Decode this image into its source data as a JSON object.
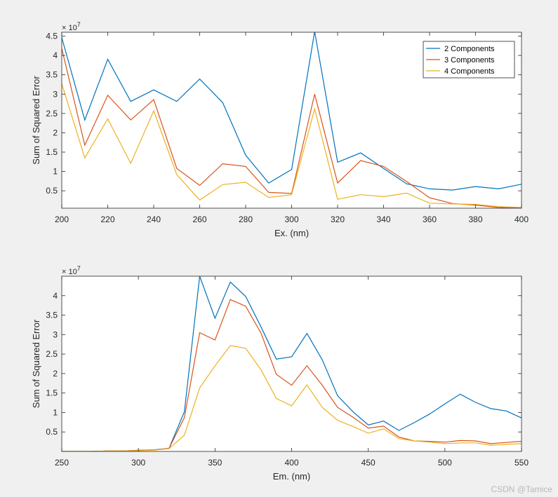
{
  "chart_data": [
    {
      "type": "line",
      "xlabel": "Ex. (nm)",
      "ylabel": "Sum of Squared Error",
      "y_exponent": "× 10^7",
      "xlim": [
        200,
        400
      ],
      "ylim": [
        0.05,
        4.6
      ],
      "xticks": [
        200,
        220,
        240,
        260,
        280,
        300,
        320,
        340,
        360,
        380,
        400
      ],
      "yticks": [
        0.5,
        1,
        1.5,
        2,
        2.5,
        3,
        3.5,
        4,
        4.5
      ],
      "x": [
        200,
        210,
        220,
        230,
        240,
        250,
        260,
        270,
        280,
        290,
        300,
        310,
        320,
        330,
        340,
        350,
        360,
        370,
        380,
        390,
        400
      ],
      "legend": "top-right",
      "series": [
        {
          "name": "2 Components",
          "color": "#0072BD",
          "values": [
            4.46,
            2.33,
            3.9,
            2.81,
            3.11,
            2.81,
            3.39,
            2.78,
            1.42,
            0.7,
            1.05,
            4.62,
            1.24,
            1.48,
            1.08,
            0.68,
            0.55,
            0.52,
            0.61,
            0.55,
            0.67
          ]
        },
        {
          "name": "3 Components",
          "color": "#D95319",
          "values": [
            4.18,
            1.68,
            2.97,
            2.33,
            2.86,
            1.08,
            0.64,
            1.2,
            1.13,
            0.46,
            0.43,
            3.0,
            0.7,
            1.28,
            1.13,
            0.74,
            0.32,
            0.17,
            0.13,
            0.07,
            0.05
          ]
        },
        {
          "name": "4 Components",
          "color": "#EDB120",
          "values": [
            3.27,
            1.35,
            2.36,
            1.21,
            2.57,
            0.92,
            0.26,
            0.66,
            0.72,
            0.33,
            0.4,
            2.62,
            0.28,
            0.4,
            0.35,
            0.44,
            0.18,
            0.16,
            0.15,
            0.09,
            0.07
          ]
        }
      ]
    },
    {
      "type": "line",
      "xlabel": "Em. (nm)",
      "ylabel": "Sum of Squared Error",
      "y_exponent": "× 10^7",
      "xlim": [
        250,
        550
      ],
      "ylim": [
        0,
        4.5
      ],
      "xticks": [
        250,
        300,
        350,
        400,
        450,
        500,
        550
      ],
      "yticks": [
        0.5,
        1,
        1.5,
        2,
        2.5,
        3,
        3.5,
        4
      ],
      "x": [
        250,
        260,
        270,
        280,
        290,
        300,
        310,
        320,
        330,
        340,
        350,
        360,
        370,
        380,
        390,
        400,
        410,
        420,
        430,
        440,
        450,
        460,
        470,
        480,
        490,
        500,
        510,
        520,
        530,
        540,
        550
      ],
      "series": [
        {
          "name": "2 Components",
          "color": "#0072BD",
          "values": [
            0.0,
            0.0,
            0.0,
            0.01,
            0.01,
            0.03,
            0.04,
            0.08,
            1.02,
            4.5,
            3.42,
            4.35,
            3.98,
            3.2,
            2.37,
            2.43,
            3.03,
            2.35,
            1.43,
            1.02,
            0.68,
            0.78,
            0.54,
            0.74,
            0.96,
            1.22,
            1.47,
            1.26,
            1.1,
            1.04,
            0.86
          ]
        },
        {
          "name": "3 Components",
          "color": "#D95319",
          "values": [
            0.0,
            0.0,
            0.0,
            0.01,
            0.01,
            0.03,
            0.04,
            0.08,
            0.87,
            3.05,
            2.86,
            3.9,
            3.73,
            3.04,
            1.98,
            1.7,
            2.2,
            1.7,
            1.13,
            0.88,
            0.6,
            0.65,
            0.37,
            0.27,
            0.26,
            0.24,
            0.28,
            0.27,
            0.2,
            0.23,
            0.26
          ]
        },
        {
          "name": "4 Components",
          "color": "#EDB120",
          "values": [
            0.0,
            0.0,
            0.0,
            0.01,
            0.01,
            0.02,
            0.03,
            0.07,
            0.42,
            1.63,
            2.2,
            2.72,
            2.65,
            2.1,
            1.36,
            1.17,
            1.71,
            1.13,
            0.8,
            0.64,
            0.47,
            0.58,
            0.33,
            0.27,
            0.24,
            0.2,
            0.22,
            0.22,
            0.16,
            0.18,
            0.2
          ]
        }
      ]
    }
  ],
  "watermark": "CSDN @Tamice"
}
